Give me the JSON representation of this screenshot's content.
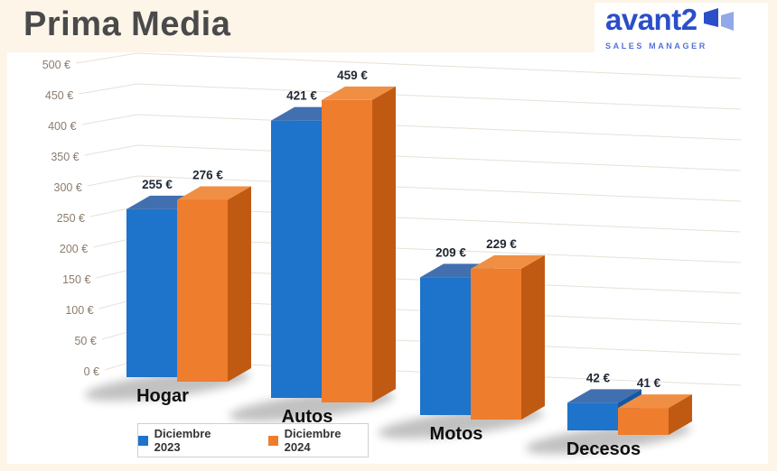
{
  "page": {
    "title": "Prima Media",
    "background_color": "#fcf5e8",
    "canvas_color": "#ffffff"
  },
  "logo": {
    "brand": "avant2",
    "tagline": "SALES MANAGER",
    "brand_color": "#2b4ec9",
    "icon": "book-flag-icon",
    "icon_colors": [
      "#2b4ec9",
      "#93a8e8"
    ]
  },
  "chart_data": {
    "type": "bar",
    "style": "3d-clustered-column",
    "title": "Prima Media",
    "categories": [
      "Hogar",
      "Autos",
      "Motos",
      "Decesos"
    ],
    "series": [
      {
        "name": "Diciembre 2023",
        "values": [
          255,
          421,
          209,
          42
        ],
        "colors": {
          "front": "#1E73CB",
          "top": "#416FB0",
          "side": "#1458A3"
        }
      },
      {
        "name": "Diciembre 2024",
        "values": [
          276,
          459,
          229,
          41
        ],
        "colors": {
          "front": "#EE7D2E",
          "top": "#F08F44",
          "side": "#C05A12"
        }
      }
    ],
    "value_suffix": " €",
    "ylim": [
      0,
      500
    ],
    "ytick_step": 50,
    "ytick_suffix": " €",
    "grid": true,
    "gridline_color": "#e7e1d7",
    "legend_position": "bottom-left"
  }
}
